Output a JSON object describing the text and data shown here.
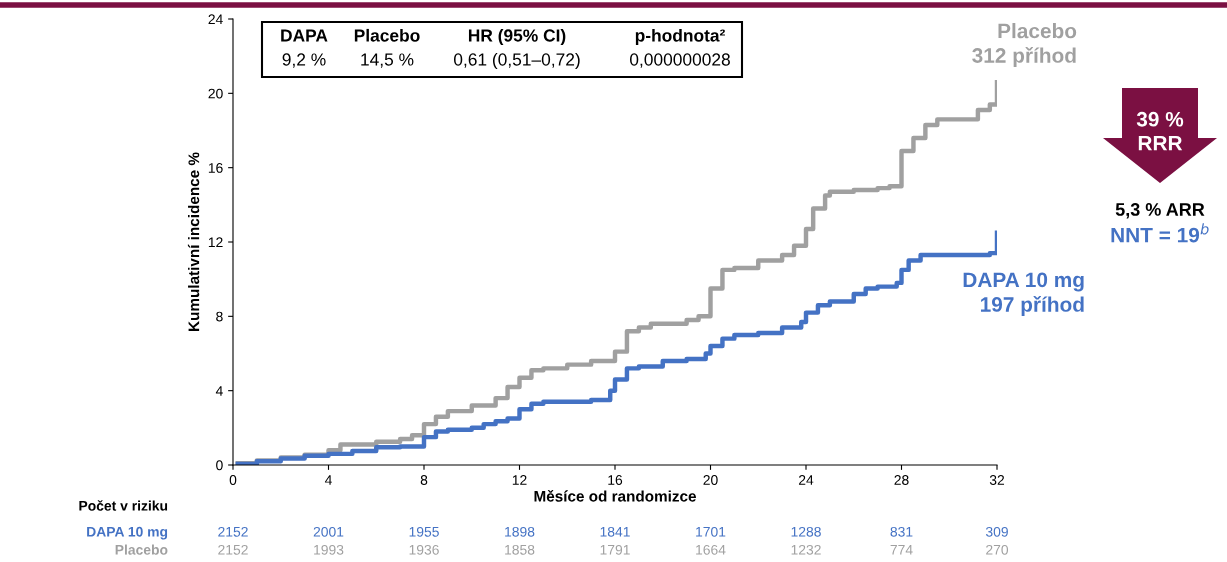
{
  "chart_data": {
    "type": "step",
    "xlabel": "Měsíce od randomizce",
    "ylabel": "Kumulativní incidence %",
    "xlim": [
      0,
      32
    ],
    "xticks": [
      0,
      4,
      8,
      12,
      16,
      20,
      24,
      28,
      32
    ],
    "ylim": [
      0,
      24
    ],
    "yticks": [
      0,
      4,
      8,
      12,
      16,
      20,
      24
    ],
    "grid": false,
    "legend": false,
    "line_style": "solid",
    "marker": "none",
    "series": [
      {
        "name": "Placebo",
        "color": "#a0a0a0",
        "x": [
          0.2,
          1,
          2,
          3,
          4,
          4.5,
          5,
          6,
          7,
          7.5,
          8,
          8.5,
          9,
          10,
          11,
          11.5,
          12,
          12.5,
          13,
          14,
          15,
          16,
          16.5,
          17,
          17.5,
          19,
          19.5,
          20,
          20.5,
          21,
          22,
          23,
          23.5,
          24,
          24.3,
          24.8,
          25,
          26,
          27,
          27.5,
          28,
          28.5,
          29,
          29.5,
          31,
          31.2,
          31.7,
          32
        ],
        "values": [
          0.1,
          0.25,
          0.4,
          0.55,
          0.8,
          1.1,
          1.1,
          1.25,
          1.4,
          1.6,
          2.2,
          2.6,
          2.9,
          3.2,
          3.6,
          4.2,
          4.7,
          5.1,
          5.2,
          5.4,
          5.6,
          6.1,
          7.2,
          7.4,
          7.6,
          7.8,
          8.0,
          9.5,
          10.5,
          10.6,
          11.0,
          11.3,
          11.8,
          12.7,
          13.8,
          14.5,
          14.7,
          14.8,
          14.9,
          15.0,
          16.9,
          17.6,
          18.3,
          18.6,
          18.6,
          19.1,
          19.4,
          20.6
        ]
      },
      {
        "name": "DAPA 10 mg",
        "color": "#4472c4",
        "x": [
          0.2,
          1,
          2,
          3,
          4,
          5,
          6,
          7,
          8,
          8.5,
          9,
          10,
          10.5,
          11,
          11.5,
          12,
          12.5,
          13,
          15,
          15.8,
          16,
          16.5,
          17,
          18,
          19,
          19.8,
          20,
          20.5,
          21,
          22,
          23,
          23.8,
          24,
          24.5,
          25,
          26,
          26.5,
          27,
          27.8,
          28,
          28.3,
          28.8,
          31.7,
          32
        ],
        "values": [
          0.05,
          0.2,
          0.35,
          0.5,
          0.6,
          0.75,
          0.95,
          1.0,
          1.5,
          1.8,
          1.9,
          2.0,
          2.2,
          2.35,
          2.5,
          3.0,
          3.3,
          3.4,
          3.5,
          4.0,
          4.6,
          5.2,
          5.3,
          5.6,
          5.7,
          6.0,
          6.4,
          6.8,
          7.0,
          7.1,
          7.4,
          7.7,
          8.2,
          8.6,
          8.8,
          9.2,
          9.5,
          9.6,
          9.8,
          10.5,
          11.0,
          11.3,
          11.4,
          12.5
        ]
      }
    ],
    "annotations": [
      "312 příhod",
      "197 příhod",
      "DAPA",
      "Placebo",
      "HR (95% CI)",
      "p-hodnota²",
      "9,2 %",
      "14,5 %",
      "0,61 (0,51–0,72)",
      "0,000000028",
      "39 %\nRRR",
      "5,3 % ARR",
      "NNT = 19$^{b}$",
      "Počet v riziku",
      "2152",
      "2001",
      "1955",
      "1898",
      "1841",
      "1701",
      "1288",
      "831",
      "309",
      "2152",
      "1993",
      "1936",
      "1858",
      "1791",
      "1664",
      "1232",
      "774",
      "270"
    ]
  }
}
